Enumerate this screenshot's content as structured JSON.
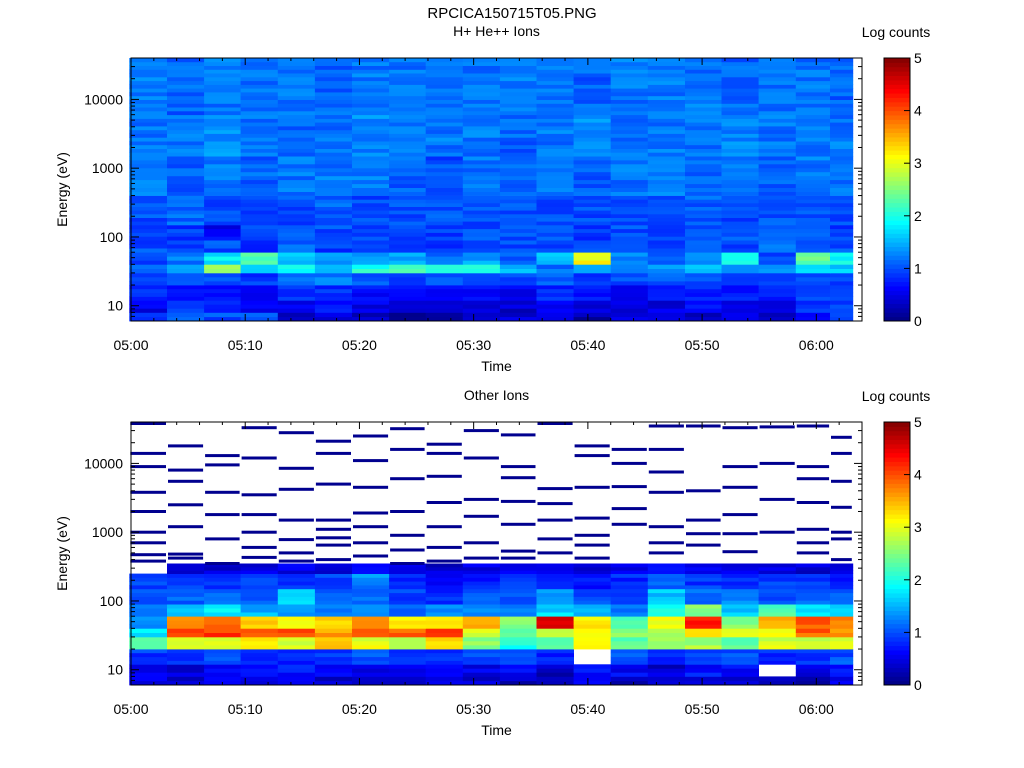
{
  "page": {
    "title": "RPCICA150715T05.PNG"
  },
  "chart_data": [
    {
      "type": "heatmap",
      "title": "H+ He++ Ions",
      "xlabel": "Time",
      "ylabel": "Energy (eV)",
      "x_ticks": [
        "05:00",
        "05:10",
        "05:20",
        "05:30",
        "05:40",
        "05:50",
        "06:00"
      ],
      "xlim_minutes": [
        0,
        64
      ],
      "y_ticks": [
        "10",
        "100",
        "1000",
        "10000"
      ],
      "ylim": [
        6,
        40000
      ],
      "y_scale": "log",
      "colorbar": {
        "label": "Log counts",
        "range": [
          0,
          5
        ],
        "ticks": [
          "0",
          "1",
          "2",
          "3",
          "4",
          "5"
        ]
      },
      "time_bins_minutes": [
        1.5,
        4.8,
        8.0,
        11.2,
        14.5,
        17.7,
        21.0,
        24.2,
        27.4,
        30.7,
        33.9,
        37.1,
        40.4,
        43.6,
        46.9,
        50.1,
        53.3,
        56.6,
        59.8,
        62.6
      ],
      "energy_bands": [
        {
          "range_eV": [
            6,
            8
          ],
          "log_counts": [
            1.0,
            1.0,
            1.0,
            1.0,
            0.4,
            0.4,
            0.4,
            0.2,
            0.2,
            0.4,
            0.4,
            0.4,
            0.2,
            0.4,
            0.4,
            0.4,
            0.4,
            0.4,
            0.6,
            1.0
          ]
        },
        {
          "range_eV": [
            8,
            12
          ],
          "log_counts": [
            0.5,
            0.9,
            0.7,
            0.5,
            0.6,
            0.7,
            0.5,
            0.4,
            0.4,
            0.5,
            0.4,
            0.6,
            0.5,
            0.4,
            0.5,
            0.7,
            0.5,
            0.6,
            0.8,
            0.9
          ]
        },
        {
          "range_eV": [
            12,
            20
          ],
          "log_counts": [
            0.9,
            0.8,
            0.8,
            0.6,
            0.8,
            0.8,
            0.7,
            0.6,
            0.6,
            0.7,
            0.6,
            0.8,
            0.7,
            0.6,
            0.7,
            0.8,
            0.7,
            0.7,
            0.9,
            1.0
          ]
        },
        {
          "range_eV": [
            20,
            30
          ],
          "log_counts": [
            1.0,
            1.1,
            1.0,
            0.9,
            1.1,
            1.2,
            1.1,
            1.0,
            1.0,
            1.1,
            1.0,
            1.1,
            0.9,
            1.0,
            1.1,
            1.0,
            0.9,
            1.0,
            1.1,
            1.0
          ]
        },
        {
          "range_eV": [
            30,
            40
          ],
          "log_counts": [
            1.2,
            1.3,
            2.6,
            1.8,
            2.0,
            1.6,
            2.0,
            2.3,
            2.2,
            2.0,
            1.6,
            1.2,
            1.4,
            1.4,
            1.3,
            1.6,
            1.4,
            1.4,
            1.8,
            1.6
          ]
        },
        {
          "range_eV": [
            40,
            60
          ],
          "log_counts": [
            1.0,
            1.2,
            1.8,
            2.2,
            1.6,
            1.4,
            1.4,
            1.4,
            1.2,
            1.4,
            1.0,
            1.5,
            3.1,
            1.3,
            1.1,
            1.2,
            2.0,
            1.0,
            2.4,
            1.9
          ]
        },
        {
          "range_eV": [
            60,
            90
          ],
          "log_counts": [
            1.0,
            0.9,
            1.0,
            0.9,
            1.1,
            0.9,
            1.0,
            1.0,
            0.9,
            1.0,
            1.0,
            0.9,
            1.0,
            0.9,
            1.0,
            1.0,
            1.0,
            1.1,
            1.0,
            1.0
          ]
        },
        {
          "range_eV": [
            90,
            150
          ],
          "log_counts": [
            1.0,
            0.9,
            0.6,
            0.9,
            1.0,
            1.0,
            1.0,
            1.0,
            0.9,
            1.0,
            1.0,
            1.0,
            0.9,
            1.0,
            0.9,
            1.0,
            1.1,
            1.0,
            1.0,
            0.9
          ]
        },
        {
          "range_eV": [
            150,
            400
          ],
          "log_counts": [
            1.0,
            1.1,
            1.0,
            1.0,
            1.0,
            1.1,
            1.0,
            1.0,
            1.0,
            1.0,
            1.0,
            1.0,
            1.0,
            1.0,
            1.0,
            1.1,
            1.0,
            1.0,
            1.0,
            1.0
          ]
        },
        {
          "range_eV": [
            400,
            1500
          ],
          "log_counts": [
            1.2,
            1.1,
            1.2,
            1.1,
            1.2,
            1.2,
            1.2,
            1.1,
            1.0,
            1.2,
            1.1,
            1.2,
            1.1,
            1.2,
            1.2,
            1.1,
            1.2,
            1.1,
            1.2,
            1.2
          ]
        },
        {
          "range_eV": [
            1500,
            6000
          ],
          "log_counts": [
            1.2,
            1.2,
            1.3,
            1.2,
            1.1,
            1.2,
            1.3,
            1.2,
            1.2,
            1.2,
            1.1,
            1.2,
            1.3,
            1.2,
            1.2,
            1.2,
            1.3,
            1.2,
            1.2,
            1.2
          ]
        },
        {
          "range_eV": [
            6000,
            40000
          ],
          "log_counts": [
            1.2,
            1.1,
            1.2,
            1.2,
            1.2,
            1.1,
            1.2,
            1.2,
            1.1,
            1.2,
            1.2,
            1.2,
            1.1,
            1.2,
            1.2,
            1.2,
            1.1,
            1.2,
            1.2,
            1.1
          ]
        }
      ]
    },
    {
      "type": "heatmap",
      "title": "Other Ions",
      "xlabel": "Time",
      "ylabel": "Energy (eV)",
      "x_ticks": [
        "05:00",
        "05:10",
        "05:20",
        "05:30",
        "05:40",
        "05:50",
        "06:00"
      ],
      "xlim_minutes": [
        0,
        64
      ],
      "y_ticks": [
        "10",
        "100",
        "1000",
        "10000"
      ],
      "ylim": [
        6,
        40000
      ],
      "y_scale": "log",
      "colorbar": {
        "label": "Log counts",
        "range": [
          0,
          5
        ],
        "ticks": [
          "0",
          "1",
          "2",
          "3",
          "4",
          "5"
        ]
      },
      "time_bins_minutes": [
        1.5,
        4.8,
        8.0,
        11.2,
        14.5,
        17.7,
        21.0,
        24.2,
        27.4,
        30.7,
        33.9,
        37.1,
        40.4,
        43.6,
        46.9,
        50.1,
        53.3,
        56.6,
        59.8,
        62.6
      ],
      "energy_bands": [
        {
          "range_eV": [
            6,
            8
          ],
          "log_counts": [
            0.5,
            0.3,
            0.5,
            0.4,
            0.5,
            0.4,
            0.5,
            0.3,
            0.5,
            0.4,
            0.3,
            0.2,
            0.5,
            0.3,
            0.5,
            0.4,
            0.3,
            0.4,
            0.2,
            0.5
          ]
        },
        {
          "range_eV": [
            8,
            12
          ],
          "log_counts": [
            0.6,
            0.4,
            0.7,
            0.6,
            0.7,
            0.6,
            0.5,
            0.6,
            0.7,
            0.5,
            0.6,
            0.3,
            0.7,
            0.6,
            0.4,
            0.7,
            0.6,
            null,
            0.5,
            0.7
          ]
        },
        {
          "range_eV": [
            12,
            20
          ],
          "log_counts": [
            0.9,
            0.8,
            1.0,
            0.9,
            0.8,
            0.9,
            1.0,
            0.8,
            0.9,
            1.0,
            0.9,
            0.8,
            null,
            1.0,
            0.8,
            0.9,
            1.0,
            0.8,
            0.9,
            1.0
          ]
        },
        {
          "range_eV": [
            20,
            30
          ],
          "log_counts": [
            2.2,
            2.8,
            3.0,
            3.2,
            2.9,
            3.3,
            3.0,
            2.9,
            3.3,
            2.6,
            2.0,
            2.3,
            3.1,
            2.3,
            2.6,
            2.7,
            2.3,
            2.9,
            2.8,
            3.0
          ]
        },
        {
          "range_eV": [
            30,
            40
          ],
          "log_counts": [
            1.8,
            4.0,
            4.1,
            3.9,
            4.0,
            3.6,
            3.8,
            3.9,
            4.0,
            3.0,
            2.4,
            2.8,
            3.1,
            2.6,
            2.8,
            3.2,
            3.0,
            3.2,
            3.9,
            3.6
          ]
        },
        {
          "range_eV": [
            40,
            60
          ],
          "log_counts": [
            1.4,
            3.8,
            3.9,
            3.4,
            3.1,
            3.4,
            3.6,
            3.2,
            3.3,
            3.5,
            2.6,
            4.6,
            3.2,
            2.3,
            3.1,
            4.3,
            2.6,
            3.6,
            3.9,
            3.8
          ]
        },
        {
          "range_eV": [
            60,
            90
          ],
          "log_counts": [
            1.1,
            1.5,
            1.8,
            1.5,
            1.3,
            1.2,
            1.4,
            1.2,
            1.3,
            1.3,
            1.3,
            1.7,
            1.4,
            1.2,
            2.0,
            2.5,
            1.6,
            2.2,
            1.8,
            1.6
          ]
        },
        {
          "range_eV": [
            90,
            150
          ],
          "log_counts": [
            1.0,
            1.1,
            1.2,
            1.0,
            1.6,
            1.0,
            1.2,
            0.9,
            0.8,
            1.1,
            1.0,
            1.3,
            1.0,
            1.0,
            1.6,
            1.2,
            1.3,
            1.0,
            1.1,
            1.1
          ]
        },
        {
          "range_eV": [
            150,
            250
          ],
          "log_counts": [
            0.9,
            0.9,
            0.8,
            0.9,
            0.8,
            1.0,
            1.3,
            0.8,
            0.7,
            0.8,
            0.9,
            0.8,
            0.7,
            0.8,
            1.1,
            0.9,
            0.8,
            0.9,
            0.9,
            0.8
          ]
        },
        {
          "range_eV": [
            250,
            350
          ],
          "log_counts": [
            null,
            0.5,
            0.4,
            0.5,
            0.5,
            0.5,
            0.6,
            0.4,
            0.4,
            0.5,
            0.5,
            0.5,
            0.4,
            0.5,
            0.6,
            0.5,
            0.5,
            0.5,
            0.4,
            0.5
          ]
        }
      ],
      "sparse_traces_eV": [
        [
          38000,
          14000,
          9000,
          3800,
          2000,
          1000,
          700,
          470,
          380
        ],
        [
          18000,
          8000,
          5500,
          2500,
          1200,
          480,
          420
        ],
        [
          13000,
          9500,
          3800,
          1800,
          800,
          350
        ],
        [
          33000,
          12000,
          3500,
          1800,
          1000,
          600,
          430
        ],
        [
          28000,
          8500,
          4200,
          1500,
          780,
          500,
          380
        ],
        [
          21000,
          14000,
          5000,
          1500,
          1100,
          830,
          650,
          400
        ],
        [
          25000,
          11000,
          4500,
          1900,
          1200,
          700,
          450
        ],
        [
          32000,
          16000,
          6000,
          2000,
          900,
          550,
          350
        ],
        [
          19000,
          14000,
          6500,
          2700,
          1200,
          600,
          380
        ],
        [
          30000,
          12000,
          3000,
          1700,
          700,
          420
        ],
        [
          26000,
          9000,
          6200,
          2800,
          1300,
          530,
          420
        ],
        [
          38000,
          4300,
          2600,
          1500,
          800,
          500
        ],
        [
          18000,
          13000,
          4500,
          1600,
          900,
          650,
          420
        ],
        [
          16000,
          10000,
          4600,
          2200,
          1300
        ],
        [
          35000,
          16000,
          7500,
          3800,
          1200,
          700,
          500
        ],
        [
          35000,
          4000,
          1500,
          950,
          650
        ],
        [
          33000,
          9000,
          4500,
          1800,
          950,
          520
        ],
        [
          34000,
          10000,
          3000,
          1000
        ],
        [
          35000,
          9000,
          6000,
          2700,
          1100,
          700,
          500
        ],
        [
          24000,
          14000,
          5500,
          2300,
          1000,
          800,
          400
        ]
      ]
    }
  ]
}
